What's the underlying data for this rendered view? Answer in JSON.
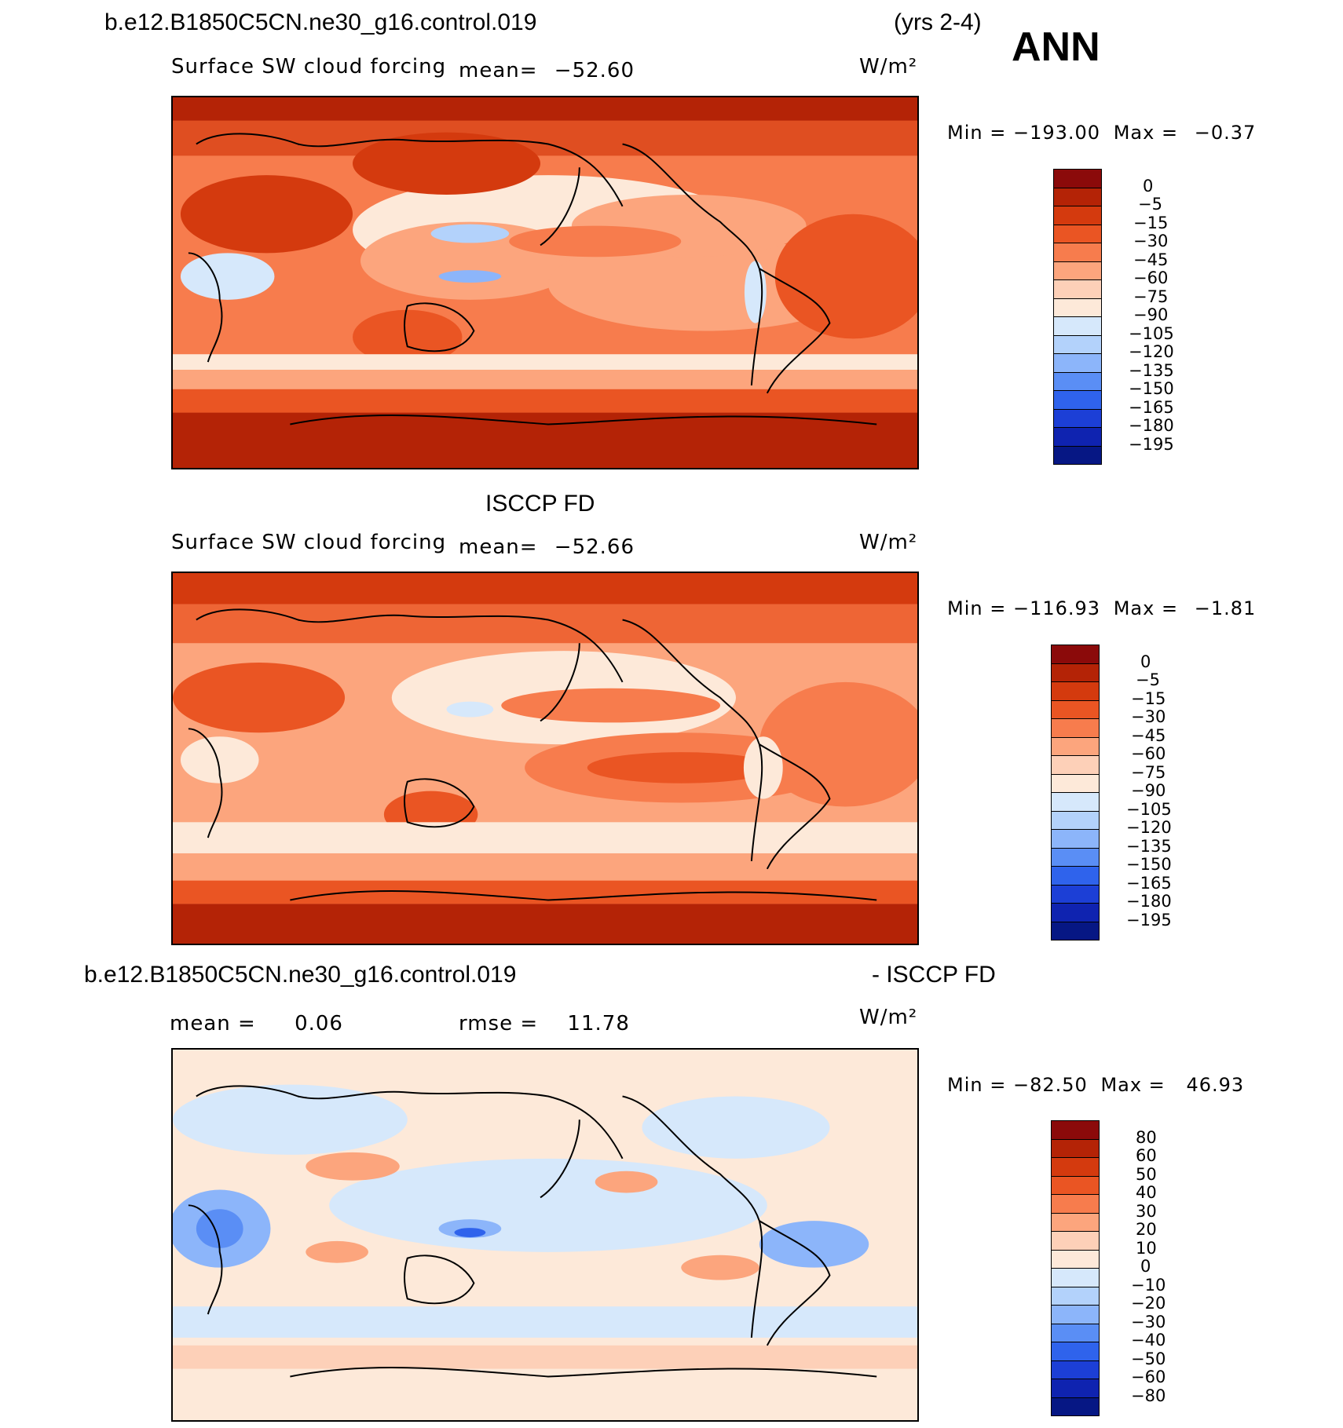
{
  "header": {
    "case_name": "b.e12.B1850C5CN.ne30_g16.control.019",
    "years": "(yrs 2-4)",
    "season": "ANN"
  },
  "panels": [
    {
      "id": "model",
      "title": "",
      "variable": "Surface SW cloud forcing",
      "mean_label": "mean=",
      "mean_value": "−52.60",
      "units": "W/m²",
      "min_label": "Min =",
      "min_value": "−193.00",
      "max_label": "Max =",
      "max_value": "−0.37",
      "colorbar_ticks": [
        "0",
        "−5",
        "−15",
        "−30",
        "−45",
        "−60",
        "−75",
        "−90",
        "−105",
        "−120",
        "−135",
        "−150",
        "−165",
        "−180",
        "−195"
      ]
    },
    {
      "id": "obs",
      "title": "ISCCP FD",
      "variable": "Surface SW cloud forcing",
      "mean_label": "mean=",
      "mean_value": "−52.66",
      "units": "W/m²",
      "min_label": "Min =",
      "min_value": "−116.93",
      "max_label": "Max =",
      "max_value": "−1.81",
      "colorbar_ticks": [
        "0",
        "−5",
        "−15",
        "−30",
        "−45",
        "−60",
        "−75",
        "−90",
        "−105",
        "−120",
        "−135",
        "−150",
        "−165",
        "−180",
        "−195"
      ]
    },
    {
      "id": "diff",
      "title_left": "b.e12.B1850C5CN.ne30_g16.control.019",
      "title_right": "- ISCCP FD",
      "mean_label": "mean =",
      "mean_value": "0.06",
      "rmse_label": "rmse =",
      "rmse_value": "11.78",
      "units": "W/m²",
      "min_label": "Min =",
      "min_value": "−82.50",
      "max_label": "Max =",
      "max_value": "46.93",
      "colorbar_ticks": [
        "80",
        "60",
        "50",
        "40",
        "30",
        "20",
        "10",
        "0",
        "−10",
        "−20",
        "−30",
        "−40",
        "−50",
        "−60",
        "−80"
      ]
    }
  ],
  "colors": {
    "colorbar": [
      "#8b0a0a",
      "#b42306",
      "#d43a0e",
      "#ea5523",
      "#f77c4d",
      "#fca57d",
      "#fdd0b8",
      "#fde9d9",
      "#d6e8fb",
      "#b3d2fb",
      "#8cb5fa",
      "#5a8ef5",
      "#2f63ec",
      "#1c3fd6",
      "#0f23b0",
      "#061784"
    ]
  }
}
